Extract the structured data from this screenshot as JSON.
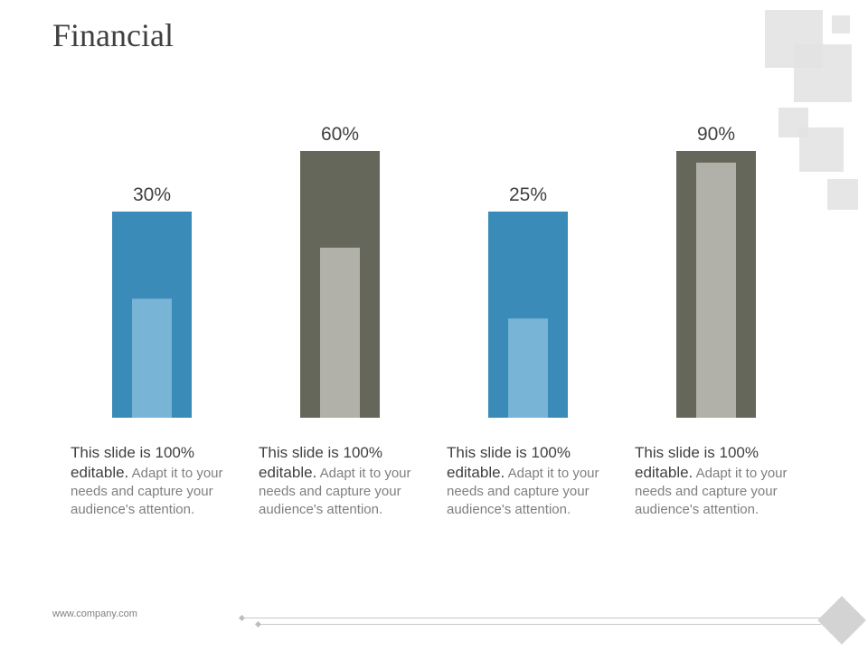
{
  "slide": {
    "title": "Financial",
    "footer_url": "www.company.com"
  },
  "colors": {
    "blue_outer": "#3b8bb8",
    "blue_inner": "#77b4d6",
    "gray_outer": "#65675b",
    "gray_inner": "#b1b1a9",
    "title_text": "#404040",
    "body_text": "#7f7f7f"
  },
  "chart_data": {
    "type": "bar",
    "categories": [
      "",
      "",
      "",
      ""
    ],
    "values": [
      30,
      60,
      25,
      90
    ],
    "value_labels": [
      "30%",
      "60%",
      "25%",
      "90%"
    ],
    "unit": "%",
    "ylim": [
      0,
      100
    ],
    "grid": false,
    "legend": "none",
    "title": "",
    "xlabel": "",
    "ylabel": ""
  },
  "descriptions": [
    {
      "lead": "This slide is 100% editable.",
      "body": "Adapt it to your needs and capture your audience's attention."
    },
    {
      "lead": "This slide is 100% editable.",
      "body": "Adapt it to your needs and capture your audience's attention."
    },
    {
      "lead": "This slide is 100% editable.",
      "body": "Adapt it to your needs and capture your audience's attention."
    },
    {
      "lead": "This slide is 100% editable.",
      "body": "Adapt it to your needs and capture your audience's attention."
    }
  ]
}
